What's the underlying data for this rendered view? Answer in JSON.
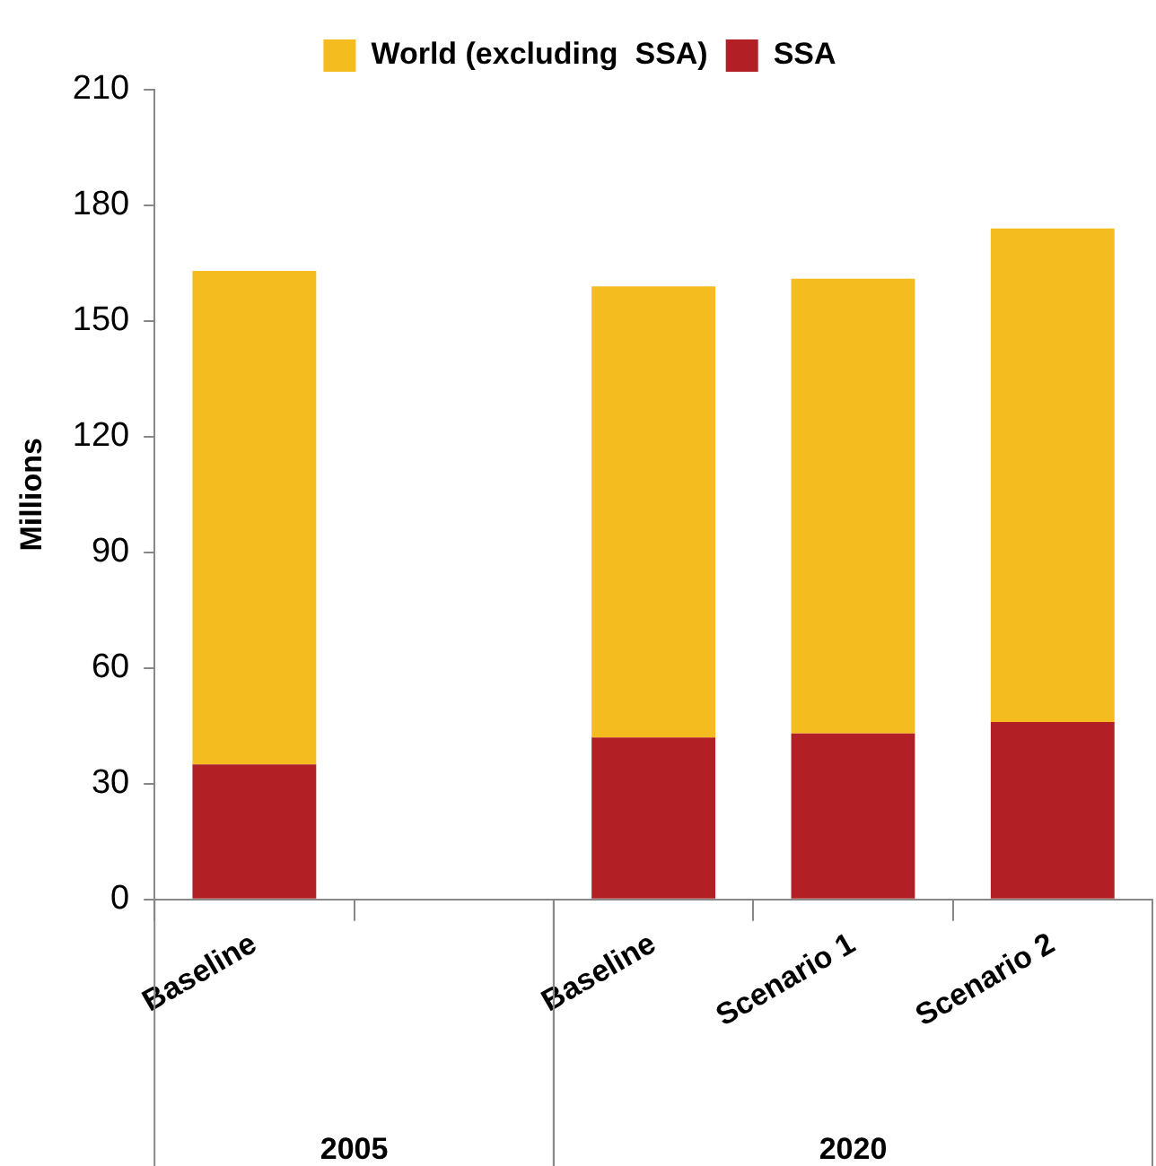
{
  "chart_data": {
    "type": "bar",
    "stacked": true,
    "ylabel": "Millions",
    "categories": [
      "Baseline",
      null,
      "Baseline",
      "Scenario 1",
      "Scenario 2"
    ],
    "series": [
      {
        "name": "SSA",
        "color": "#b22025",
        "values": [
          35,
          null,
          42,
          43,
          46
        ]
      },
      {
        "name": "World (excluding  SSA)",
        "color": "#f5bc1f",
        "values": [
          128,
          null,
          117,
          118,
          128
        ]
      }
    ],
    "ylim": [
      0,
      210
    ],
    "yticks": [
      0,
      30,
      60,
      90,
      120,
      150,
      180,
      210
    ],
    "grid": false,
    "legend": "top",
    "annotations": [
      "2005",
      "2020"
    ]
  }
}
